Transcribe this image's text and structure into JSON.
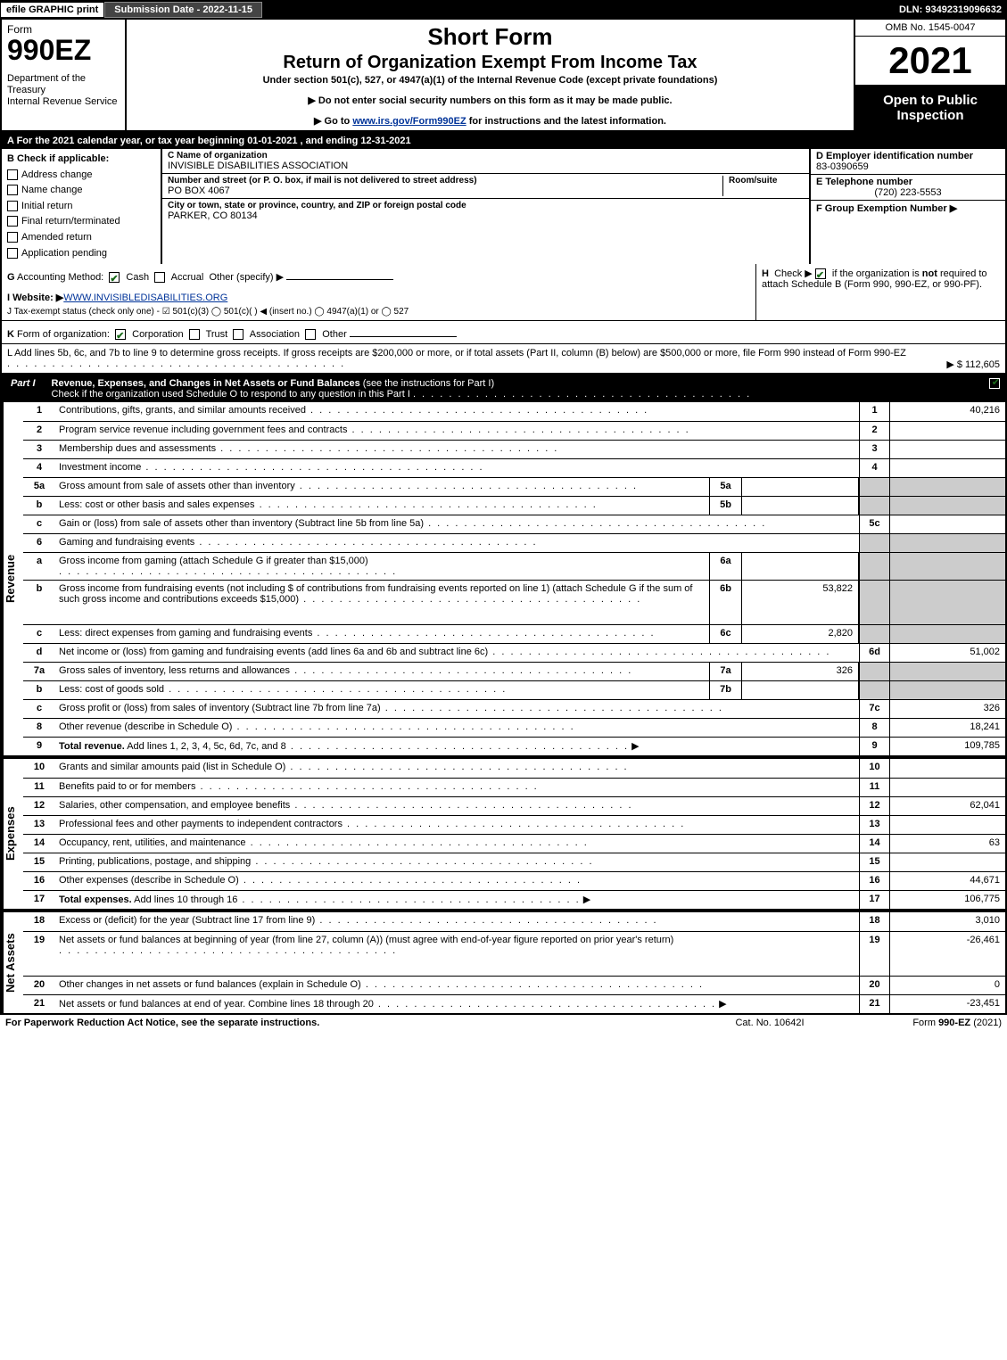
{
  "top": {
    "efile": "efile GRAPHIC print",
    "submission": "Submission Date - 2022-11-15",
    "dln": "DLN: 93492319096632"
  },
  "header": {
    "form_word": "Form",
    "form_no": "990EZ",
    "dept": "Department of the Treasury\nInternal Revenue Service",
    "title1": "Short Form",
    "title2": "Return of Organization Exempt From Income Tax",
    "subtitle": "Under section 501(c), 527, or 4947(a)(1) of the Internal Revenue Code (except private foundations)",
    "instr1": "▶ Do not enter social security numbers on this form as it may be made public.",
    "instr2_pre": "▶ Go to ",
    "instr2_link": "www.irs.gov/Form990EZ",
    "instr2_post": " for instructions and the latest information.",
    "omb": "OMB No. 1545-0047",
    "year": "2021",
    "open": "Open to Public Inspection"
  },
  "rowA": "A  For the 2021 calendar year, or tax year beginning 01-01-2021 , and ending 12-31-2021",
  "B": {
    "label": "B  Check if applicable:",
    "opts": [
      "Address change",
      "Name change",
      "Initial return",
      "Final return/terminated",
      "Amended return",
      "Application pending"
    ]
  },
  "C": {
    "lbl": "C Name of organization",
    "val": "INVISIBLE DISABILITIES ASSOCIATION",
    "addr_lbl": "Number and street (or P. O. box, if mail is not delivered to street address)",
    "room_lbl": "Room/suite",
    "addr_val": "PO BOX 4067",
    "city_lbl": "City or town, state or province, country, and ZIP or foreign postal code",
    "city_val": "PARKER, CO  80134"
  },
  "D": {
    "lbl": "D Employer identification number",
    "val": "83-0390659"
  },
  "E": {
    "lbl": "E Telephone number",
    "val": "(720) 223-5553"
  },
  "F": {
    "lbl": "F Group Exemption Number  ▶",
    "val": ""
  },
  "G": "G Accounting Method:   ☑ Cash   ◯ Accrual   Other (specify) ▶",
  "H": "H   Check ▶ ☑ if the organization is not required to attach Schedule B (Form 990, 990-EZ, or 990-PF).",
  "I": {
    "pre": "I Website: ▶",
    "link": "WWW.INVISIBLEDISABILITIES.ORG"
  },
  "J": "J Tax-exempt status (check only one) -  ☑ 501(c)(3)  ◯ 501(c)(  ) ◀ (insert no.)  ◯ 4947(a)(1) or  ◯ 527",
  "K": "K Form of organization:   ☑ Corporation   ◯ Trust   ◯ Association   ◯ Other",
  "L": {
    "text": "L Add lines 5b, 6c, and 7b to line 9 to determine gross receipts. If gross receipts are $200,000 or more, or if total assets (Part II, column (B) below) are $500,000 or more, file Form 990 instead of Form 990-EZ",
    "amount": "▶ $ 112,605"
  },
  "partI": {
    "tag": "Part I",
    "title_b": "Revenue, Expenses, and Changes in Net Assets or Fund Balances",
    "title_rest": " (see the instructions for Part I)",
    "sub": "Check if the organization used Schedule O to respond to any question in this Part I"
  },
  "sections": [
    {
      "side": "Revenue",
      "lines": [
        {
          "n": "1",
          "d": "Contributions, gifts, grants, and similar amounts received",
          "num": "1",
          "val": "40,216"
        },
        {
          "n": "2",
          "d": "Program service revenue including government fees and contracts",
          "num": "2",
          "val": ""
        },
        {
          "n": "3",
          "d": "Membership dues and assessments",
          "num": "3",
          "val": ""
        },
        {
          "n": "4",
          "d": "Investment income",
          "num": "4",
          "val": ""
        },
        {
          "n": "5a",
          "d": "Gross amount from sale of assets other than inventory",
          "in_n": "5a",
          "in_v": "",
          "grey": true
        },
        {
          "n": "b",
          "d": "Less: cost or other basis and sales expenses",
          "in_n": "5b",
          "in_v": "",
          "grey": true
        },
        {
          "n": "c",
          "d": "Gain or (loss) from sale of assets other than inventory (Subtract line 5b from line 5a)",
          "num": "5c",
          "val": ""
        },
        {
          "n": "6",
          "d": "Gaming and fundraising events",
          "grey_only": true
        },
        {
          "n": "a",
          "d": "Gross income from gaming (attach Schedule G if greater than $15,000)",
          "in_n": "6a",
          "in_v": "",
          "grey": true
        },
        {
          "n": "b",
          "d": "Gross income from fundraising events (not including $                    of contributions from fundraising events reported on line 1) (attach Schedule G if the sum of such gross income and contributions exceeds $15,000)",
          "in_n": "6b",
          "in_v": "53,822",
          "tall": true,
          "grey": true
        },
        {
          "n": "c",
          "d": "Less: direct expenses from gaming and fundraising events",
          "in_n": "6c",
          "in_v": "2,820",
          "grey": true
        },
        {
          "n": "d",
          "d": "Net income or (loss) from gaming and fundraising events (add lines 6a and 6b and subtract line 6c)",
          "num": "6d",
          "val": "51,002"
        },
        {
          "n": "7a",
          "d": "Gross sales of inventory, less returns and allowances",
          "in_n": "7a",
          "in_v": "326",
          "grey": true
        },
        {
          "n": "b",
          "d": "Less: cost of goods sold",
          "in_n": "7b",
          "in_v": "",
          "grey": true
        },
        {
          "n": "c",
          "d": "Gross profit or (loss) from sales of inventory (Subtract line 7b from line 7a)",
          "num": "7c",
          "val": "326"
        },
        {
          "n": "8",
          "d": "Other revenue (describe in Schedule O)",
          "num": "8",
          "val": "18,241"
        },
        {
          "n": "9",
          "d": "Total revenue. Add lines 1, 2, 3, 4, 5c, 6d, 7c, and 8",
          "num": "9",
          "val": "109,785",
          "bold": true,
          "arrow": true
        }
      ]
    },
    {
      "side": "Expenses",
      "thick": true,
      "lines": [
        {
          "n": "10",
          "d": "Grants and similar amounts paid (list in Schedule O)",
          "num": "10",
          "val": ""
        },
        {
          "n": "11",
          "d": "Benefits paid to or for members",
          "num": "11",
          "val": ""
        },
        {
          "n": "12",
          "d": "Salaries, other compensation, and employee benefits",
          "num": "12",
          "val": "62,041"
        },
        {
          "n": "13",
          "d": "Professional fees and other payments to independent contractors",
          "num": "13",
          "val": ""
        },
        {
          "n": "14",
          "d": "Occupancy, rent, utilities, and maintenance",
          "num": "14",
          "val": "63"
        },
        {
          "n": "15",
          "d": "Printing, publications, postage, and shipping",
          "num": "15",
          "val": ""
        },
        {
          "n": "16",
          "d": "Other expenses (describe in Schedule O)",
          "num": "16",
          "val": "44,671"
        },
        {
          "n": "17",
          "d": "Total expenses. Add lines 10 through 16",
          "num": "17",
          "val": "106,775",
          "bold": true,
          "arrow": true
        }
      ]
    },
    {
      "side": "Net Assets",
      "thick": true,
      "lines": [
        {
          "n": "18",
          "d": "Excess or (deficit) for the year (Subtract line 17 from line 9)",
          "num": "18",
          "val": "3,010"
        },
        {
          "n": "19",
          "d": "Net assets or fund balances at beginning of year (from line 27, column (A)) (must agree with end-of-year figure reported on prior year's return)",
          "num": "19",
          "val": "-26,461",
          "tall": true
        },
        {
          "n": "20",
          "d": "Other changes in net assets or fund balances (explain in Schedule O)",
          "num": "20",
          "val": "0"
        },
        {
          "n": "21",
          "d": "Net assets or fund balances at end of year. Combine lines 18 through 20",
          "num": "21",
          "val": "-23,451",
          "arrow": true
        }
      ]
    }
  ],
  "footer": {
    "left": "For Paperwork Reduction Act Notice, see the separate instructions.",
    "mid": "Cat. No. 10642I",
    "right": "Form 990-EZ (2021)"
  },
  "colors": {
    "green_check": "#1a6b1a",
    "grey_cell": "#cccccc",
    "link": "#003399"
  }
}
